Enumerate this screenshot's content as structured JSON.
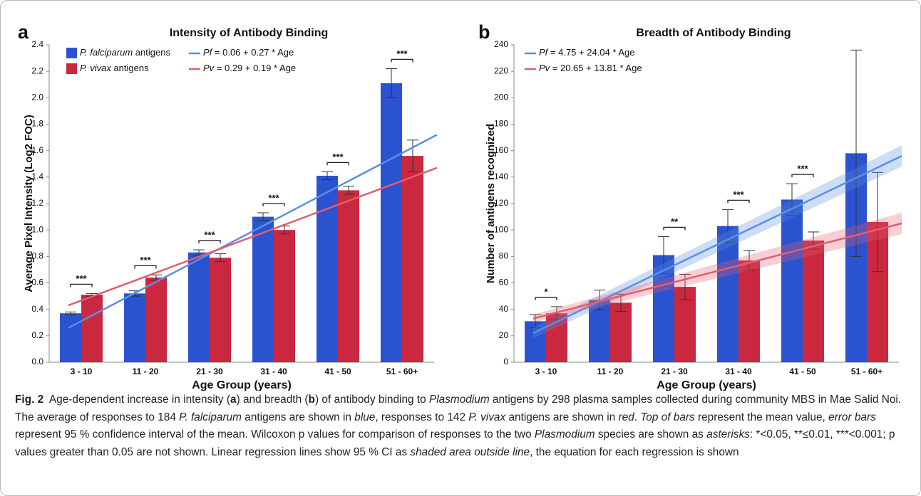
{
  "chart_data": [
    {
      "type": "bar",
      "panel": "a",
      "title": "Intensity of Antibody Binding",
      "xlabel": "Age Group (years)",
      "ylabel": "Average Pixel Intensity (Log2 FOC)",
      "categories": [
        "3 - 10",
        "11 - 20",
        "21 - 30",
        "31 - 40",
        "41 - 50",
        "51 - 60+"
      ],
      "legend": "top-left",
      "series": [
        {
          "name": "P. falciparum",
          "name_suffix": " antigens",
          "color": "#2b52cf",
          "values": [
            0.37,
            0.52,
            0.83,
            1.1,
            1.41,
            2.11
          ],
          "errors": [
            0.01,
            0.02,
            0.02,
            0.03,
            0.03,
            0.11
          ]
        },
        {
          "name": "P. vivax",
          "name_suffix": " antigens",
          "color": "#c9283f",
          "values": [
            0.51,
            0.64,
            0.79,
            1.0,
            1.3,
            1.56
          ],
          "errors": [
            0.01,
            0.02,
            0.03,
            0.03,
            0.03,
            0.12
          ]
        }
      ],
      "significance": [
        "***",
        "***",
        "***",
        "***",
        "***",
        "***"
      ],
      "trends": [
        {
          "symbol": "Pf",
          "equation": " = 0.06 + 0.27 * Age",
          "color": "#5b8fe2",
          "values": [
            0.26,
            1.72
          ]
        },
        {
          "symbol": "Pv",
          "equation": " = 0.29 + 0.19 * Age",
          "color": "#e35d6d",
          "values": [
            0.43,
            1.47
          ]
        }
      ],
      "ylim": [
        0,
        2.4
      ],
      "yticks": [
        {
          "value": 0,
          "label": "0.0"
        },
        0.2,
        0.4,
        0.6,
        0.8,
        {
          "value": 1,
          "label": "1.0"
        },
        1.2,
        1.4,
        1.6,
        1.8,
        {
          "value": 2,
          "label": "2.0"
        },
        2.2,
        2.4
      ]
    },
    {
      "type": "bar",
      "panel": "b",
      "title": "Breadth of Antibody Binding",
      "xlabel": "Age Group (years)",
      "ylabel": "Number of antigens recognized",
      "categories": [
        "3 - 10",
        "11 - 20",
        "21 - 30",
        "31 - 40",
        "41 - 50",
        "51 - 60+"
      ],
      "series": [
        {
          "color": "#2b52cf",
          "values": [
            31,
            47,
            81,
            103,
            123,
            158
          ],
          "errors": [
            5,
            7.5,
            14,
            12.5,
            12,
            78
          ]
        },
        {
          "color": "#c9283f",
          "values": [
            37,
            45,
            57,
            77,
            92,
            106
          ],
          "errors": [
            5,
            6.5,
            9.5,
            7.5,
            6.5,
            37.5
          ]
        }
      ],
      "significance": [
        "*",
        null,
        "**",
        "***",
        "***",
        null
      ],
      "trends": [
        {
          "symbol": "Pf",
          "equation": " = 4.75 + 24.04 * Age",
          "color": "#5b8fe2",
          "values": [
            22,
            156
          ],
          "ci": [
            4,
            8
          ]
        },
        {
          "symbol": "Pv",
          "equation": " = 20.65 + 13.81 * Age",
          "color": "#e35d6d",
          "values": [
            33,
            105
          ],
          "ci": [
            3,
            8
          ]
        }
      ],
      "ylim": [
        0,
        240
      ],
      "yticks": [
        0,
        20,
        40,
        60,
        80,
        100,
        120,
        140,
        160,
        180,
        200,
        220,
        240
      ]
    }
  ],
  "caption": [
    {
      "text": "Fig. 2",
      "bold": true
    },
    {
      "text": "  Age-dependent increase in intensity ("
    },
    {
      "text": "a",
      "bold": true
    },
    {
      "text": ") and breadth ("
    },
    {
      "text": "b",
      "bold": true
    },
    {
      "text": ") of antibody binding to "
    },
    {
      "text": "Plasmodium",
      "italic": true
    },
    {
      "text": " antigens by 298 plasma samples collected during community MBS in Mae Salid Noi. The average of responses to 184 "
    },
    {
      "text": "P. falciparum",
      "italic": true
    },
    {
      "text": " antigens are shown in "
    },
    {
      "text": "blue",
      "italic": true
    },
    {
      "text": ", responses to 142 "
    },
    {
      "text": "P. vivax",
      "italic": true
    },
    {
      "text": " antigens are shown in "
    },
    {
      "text": "red",
      "italic": true
    },
    {
      "text": ". "
    },
    {
      "text": "Top of bars",
      "italic": true
    },
    {
      "text": " represent the mean value, "
    },
    {
      "text": "error bars",
      "italic": true
    },
    {
      "text": " represent 95 % confidence interval of the mean. Wilcoxon p values for comparison of responses to the two "
    },
    {
      "text": "Plasmodium",
      "italic": true
    },
    {
      "text": " species are shown as "
    },
    {
      "text": "asterisks",
      "italic": true
    },
    {
      "text": ": *<0.05, **≤0.01, ***<0.001; p values greater than 0.05 are not shown. Linear regression lines show 95 % CI as "
    },
    {
      "text": "shaded area outside line",
      "italic": true
    },
    {
      "text": ", the equation for each regression is shown"
    }
  ]
}
